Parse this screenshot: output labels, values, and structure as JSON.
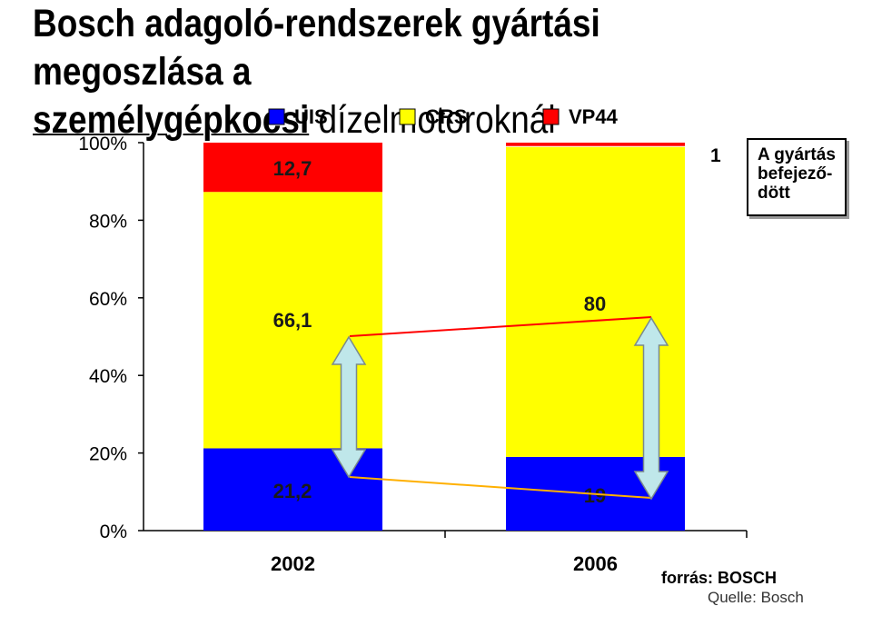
{
  "title": {
    "line1": "Bosch adagoló-rendszerek gyártási megoszlása a",
    "line2_underlined": "személygépkocsi",
    "line2_rest": " dízelmotoroknál"
  },
  "chart_data": {
    "type": "bar",
    "stacked": true,
    "categories": [
      "2002",
      "2006"
    ],
    "series": [
      {
        "name": "UIS",
        "values": [
          21.2,
          19
        ],
        "labels": [
          "21,2",
          "19"
        ],
        "color": "#0000FF"
      },
      {
        "name": "CRS",
        "values": [
          66.1,
          80
        ],
        "labels": [
          "66,1",
          "80"
        ],
        "color": "#FFFF00"
      },
      {
        "name": "VP44",
        "values": [
          12.7,
          1
        ],
        "labels": [
          "12,7",
          ""
        ],
        "color": "#FF0000"
      }
    ],
    "y_ticks": [
      "0%",
      "20%",
      "40%",
      "60%",
      "80%",
      "100%"
    ],
    "ylim": [
      0,
      100
    ],
    "legend_position": "top",
    "grid": false,
    "annotations": {
      "vp44_2006_value": "1",
      "note": [
        "A gyártás",
        "befejező-",
        "dött"
      ]
    }
  },
  "source": {
    "line1": "forrás: BOSCH",
    "line2": "Quelle: Bosch"
  }
}
